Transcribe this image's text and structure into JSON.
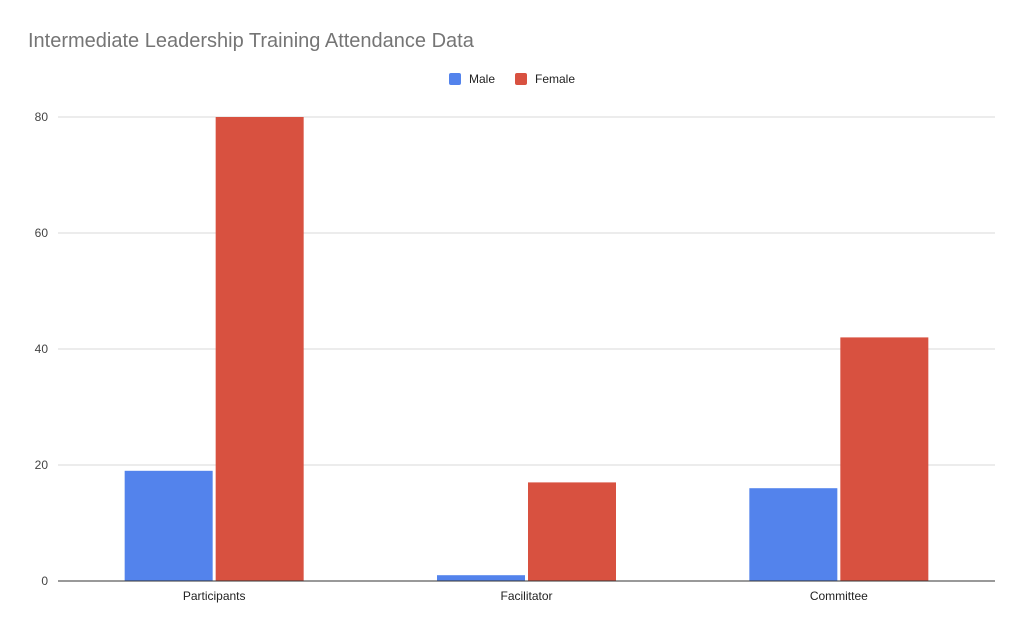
{
  "chart_data": {
    "type": "bar",
    "title": "Intermediate Leadership Training Attendance Data",
    "categories": [
      "Participants",
      "Facilitator",
      "Committee"
    ],
    "series": [
      {
        "name": "Male",
        "color": "#5383EC",
        "values": [
          19,
          1,
          16
        ]
      },
      {
        "name": "Female",
        "color": "#D85140",
        "values": [
          80,
          17,
          42
        ]
      }
    ],
    "xlabel": "",
    "ylabel": "",
    "ylim": [
      0,
      80
    ],
    "yticks": [
      "0",
      "20",
      "40",
      "60",
      "80"
    ],
    "grid": true,
    "legend_position": "top-center"
  }
}
